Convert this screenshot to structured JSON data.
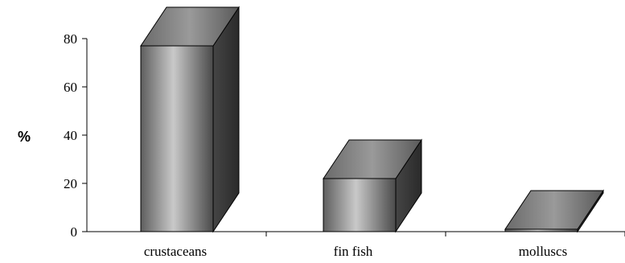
{
  "chart_data": {
    "type": "bar",
    "style": "3d",
    "categories": [
      "crustaceans",
      "fin fish",
      "molluscs"
    ],
    "values": [
      77,
      22,
      1
    ],
    "title": "",
    "xlabel": "",
    "ylabel": "%",
    "ylim": [
      0,
      80
    ],
    "yticks": [
      "0",
      "20",
      "40",
      "60",
      "80"
    ],
    "grid": false,
    "legend": "none",
    "colors": {
      "front_light": "#c8c8c8",
      "front_dark": "#5a5a5a",
      "top": "#8a8a8a",
      "side": "#3c3c3c",
      "outline": "#000000"
    }
  }
}
